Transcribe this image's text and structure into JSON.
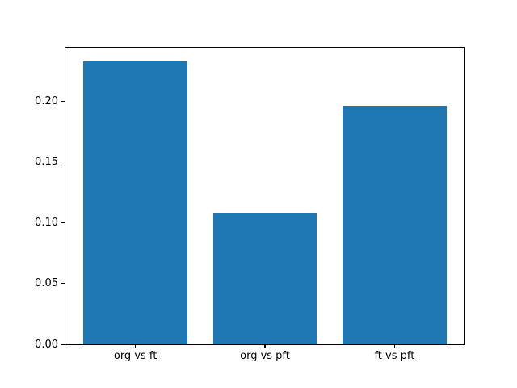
{
  "chart_data": {
    "type": "bar",
    "title": "",
    "xlabel": "",
    "ylabel": "",
    "categories": [
      "org vs ft",
      "org vs pft",
      "ft vs pft"
    ],
    "values": [
      0.2325,
      0.108,
      0.1965
    ],
    "ylim": [
      0,
      0.2441
    ],
    "yticks": [
      {
        "value": 0.0,
        "label": "0.00"
      },
      {
        "value": 0.05,
        "label": "0.05"
      },
      {
        "value": 0.1,
        "label": "0.10"
      },
      {
        "value": 0.15,
        "label": "0.15"
      },
      {
        "value": 0.2,
        "label": "0.20"
      }
    ],
    "bar_color": "#1f77b4",
    "axis_color": "#000000",
    "background_color": "#ffffff",
    "grid": false,
    "legend": null
  }
}
